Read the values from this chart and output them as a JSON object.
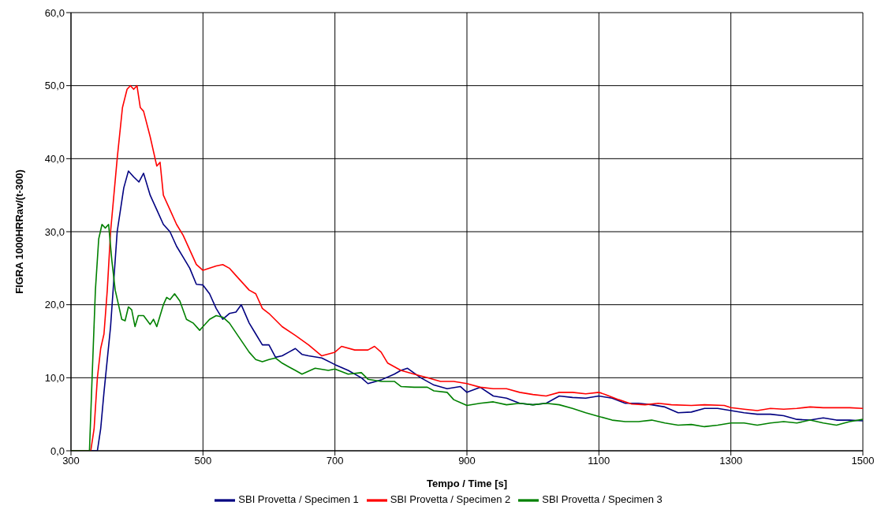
{
  "chart_data": {
    "type": "line",
    "xlabel": "Tempo / Time [s]",
    "ylabel": "FIGRA 1000HRRav/(t-300)",
    "xlim": [
      300,
      1500
    ],
    "xticks": [
      300,
      500,
      700,
      900,
      1100,
      1300,
      1500
    ],
    "ylim": [
      0,
      60
    ],
    "yticks": [
      {
        "value": 0,
        "label": "0,0"
      },
      {
        "value": 10,
        "label": "10,0"
      },
      {
        "value": 20,
        "label": "20,0"
      },
      {
        "value": 30,
        "label": "30,0"
      },
      {
        "value": 40,
        "label": "40,0"
      },
      {
        "value": 50,
        "label": "50,0"
      },
      {
        "value": 60,
        "label": "60,0"
      }
    ],
    "grid": true,
    "legend": "bottom",
    "marker": "none",
    "line_style": "solid",
    "series": [
      {
        "name": "SBI Provetta / Specimen 1",
        "color": "#000080",
        "x": [
          300,
          340,
          345,
          350,
          360,
          370,
          380,
          387,
          395,
          403,
          410,
          420,
          430,
          440,
          450,
          460,
          470,
          480,
          490,
          500,
          510,
          520,
          530,
          540,
          550,
          558,
          570,
          580,
          590,
          600,
          610,
          620,
          630,
          640,
          650,
          660,
          680,
          700,
          720,
          740,
          750,
          770,
          790,
          800,
          810,
          830,
          850,
          870,
          890,
          900,
          920,
          940,
          960,
          980,
          1000,
          1020,
          1040,
          1060,
          1080,
          1100,
          1120,
          1140,
          1160,
          1180,
          1200,
          1220,
          1240,
          1260,
          1280,
          1300,
          1320,
          1340,
          1360,
          1380,
          1400,
          1420,
          1440,
          1460,
          1480,
          1500
        ],
        "values": [
          0,
          0,
          3,
          8,
          17,
          30,
          36,
          38.3,
          37.5,
          36.8,
          38,
          35,
          33,
          31,
          30,
          28,
          26.5,
          25,
          22.8,
          22.7,
          21.5,
          19.5,
          18,
          18.8,
          19,
          20,
          17.5,
          16,
          14.5,
          14.5,
          12.8,
          13,
          13.5,
          14,
          13.2,
          13,
          12.7,
          11.8,
          11,
          10,
          9.2,
          9.7,
          10.5,
          11,
          11.3,
          10,
          9,
          8.5,
          8.8,
          8,
          8.7,
          7.5,
          7.2,
          6.5,
          6.3,
          6.5,
          7.5,
          7.3,
          7.2,
          7.5,
          7.2,
          6.5,
          6.5,
          6.3,
          6,
          5.2,
          5.3,
          5.8,
          5.8,
          5.5,
          5.2,
          5,
          5,
          4.8,
          4.3,
          4.2,
          4.5,
          4.2,
          4.2,
          4.1
        ]
      },
      {
        "name": "SBI Provetta / Specimen 2",
        "color": "#ff0000",
        "x": [
          300,
          330,
          335,
          340,
          345,
          350,
          355,
          360,
          370,
          378,
          385,
          390,
          395,
          400,
          405,
          410,
          420,
          430,
          435,
          440,
          450,
          460,
          470,
          480,
          490,
          500,
          510,
          520,
          530,
          540,
          550,
          560,
          570,
          580,
          590,
          600,
          620,
          640,
          660,
          680,
          700,
          710,
          730,
          750,
          760,
          770,
          780,
          800,
          820,
          840,
          860,
          880,
          900,
          920,
          940,
          960,
          980,
          1000,
          1020,
          1040,
          1060,
          1080,
          1100,
          1110,
          1130,
          1150,
          1170,
          1190,
          1210,
          1240,
          1260,
          1290,
          1300,
          1320,
          1340,
          1360,
          1380,
          1400,
          1420,
          1440,
          1460,
          1480,
          1500
        ],
        "values": [
          0,
          0,
          3,
          10,
          14,
          16,
          22,
          30,
          40,
          47,
          49.5,
          50,
          49.5,
          50,
          47,
          46.5,
          43,
          39,
          39.5,
          35,
          33,
          31,
          29.5,
          27.5,
          25.5,
          24.7,
          25,
          25.3,
          25.5,
          25,
          24,
          23,
          22,
          21.5,
          19.5,
          18.8,
          17,
          15.8,
          14.5,
          13,
          13.5,
          14.3,
          13.8,
          13.8,
          14.3,
          13.5,
          12,
          11,
          10.5,
          10,
          9.5,
          9.5,
          9.2,
          8.7,
          8.5,
          8.5,
          8,
          7.7,
          7.5,
          8,
          8,
          7.8,
          8,
          7.7,
          7,
          6.4,
          6.3,
          6.5,
          6.3,
          6.2,
          6.3,
          6.2,
          5.9,
          5.7,
          5.5,
          5.8,
          5.7,
          5.8,
          6,
          5.9,
          5.9,
          5.9,
          5.8
        ]
      },
      {
        "name": "SBI Provetta / Specimen 3",
        "color": "#008000",
        "x": [
          300,
          328,
          332,
          337,
          342,
          347,
          352,
          357,
          362,
          367,
          372,
          377,
          382,
          387,
          392,
          397,
          402,
          410,
          420,
          425,
          430,
          440,
          445,
          450,
          457,
          465,
          475,
          485,
          495,
          500,
          510,
          520,
          530,
          540,
          555,
          570,
          580,
          590,
          600,
          610,
          620,
          630,
          640,
          650,
          670,
          690,
          700,
          720,
          740,
          750,
          770,
          790,
          800,
          820,
          840,
          850,
          870,
          880,
          900,
          920,
          940,
          960,
          980,
          1000,
          1020,
          1040,
          1060,
          1080,
          1100,
          1120,
          1140,
          1160,
          1180,
          1200,
          1220,
          1240,
          1260,
          1280,
          1300,
          1320,
          1340,
          1360,
          1380,
          1400,
          1420,
          1440,
          1460,
          1480,
          1500
        ],
        "values": [
          0,
          0,
          10,
          22,
          29,
          31,
          30.5,
          31,
          26,
          22,
          20,
          18,
          17.8,
          19.7,
          19.3,
          17,
          18.5,
          18.5,
          17.3,
          18,
          17,
          20,
          21,
          20.7,
          21.5,
          20.5,
          18,
          17.5,
          16.5,
          17,
          18,
          18.5,
          18.3,
          17.5,
          15.5,
          13.5,
          12.5,
          12.2,
          12.5,
          12.7,
          12,
          11.5,
          11,
          10.5,
          11.3,
          11,
          11.2,
          10.5,
          10.7,
          9.8,
          9.5,
          9.5,
          8.8,
          8.7,
          8.7,
          8.2,
          8,
          7,
          6.2,
          6.5,
          6.7,
          6.3,
          6.5,
          6.3,
          6.5,
          6.3,
          5.8,
          5.2,
          4.7,
          4.2,
          4,
          4,
          4.2,
          3.8,
          3.5,
          3.6,
          3.3,
          3.5,
          3.8,
          3.8,
          3.5,
          3.8,
          4,
          3.8,
          4.2,
          3.8,
          3.5,
          4,
          4.3
        ]
      }
    ]
  }
}
